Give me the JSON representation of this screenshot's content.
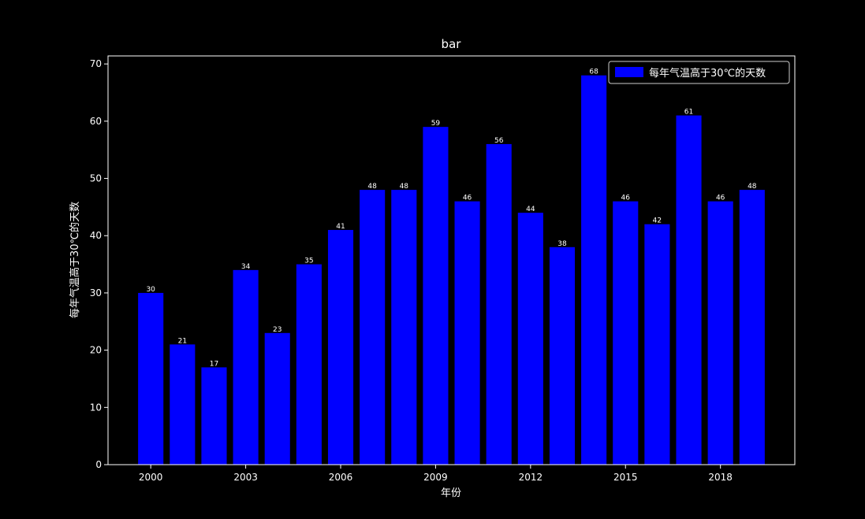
{
  "chart_data": {
    "type": "bar",
    "title": "bar",
    "xlabel": "年份",
    "ylabel": "每年气温高于30℃的天数",
    "categories": [
      2000,
      2001,
      2002,
      2003,
      2004,
      2005,
      2006,
      2007,
      2008,
      2009,
      2010,
      2011,
      2012,
      2013,
      2014,
      2015,
      2016,
      2017,
      2018,
      2019
    ],
    "series": [
      {
        "name": "每年气温高于30℃的天数",
        "values": [
          30,
          21,
          17,
          34,
          23,
          35,
          41,
          48,
          48,
          59,
          46,
          56,
          44,
          38,
          68,
          46,
          42,
          61,
          46,
          48
        ],
        "color": "#0000ff"
      }
    ],
    "xticks": [
      "2000",
      "2003",
      "2006",
      "2009",
      "2012",
      "2015",
      "2018"
    ],
    "yticks": [
      "0",
      "10",
      "20",
      "30",
      "40",
      "50",
      "60",
      "70"
    ],
    "xlim": [
      1998.65,
      2020.35
    ],
    "ylim": [
      0,
      71.4
    ],
    "grid": false,
    "legend_position": "top-right",
    "background": "#000000",
    "foreground": "#ffffff"
  }
}
